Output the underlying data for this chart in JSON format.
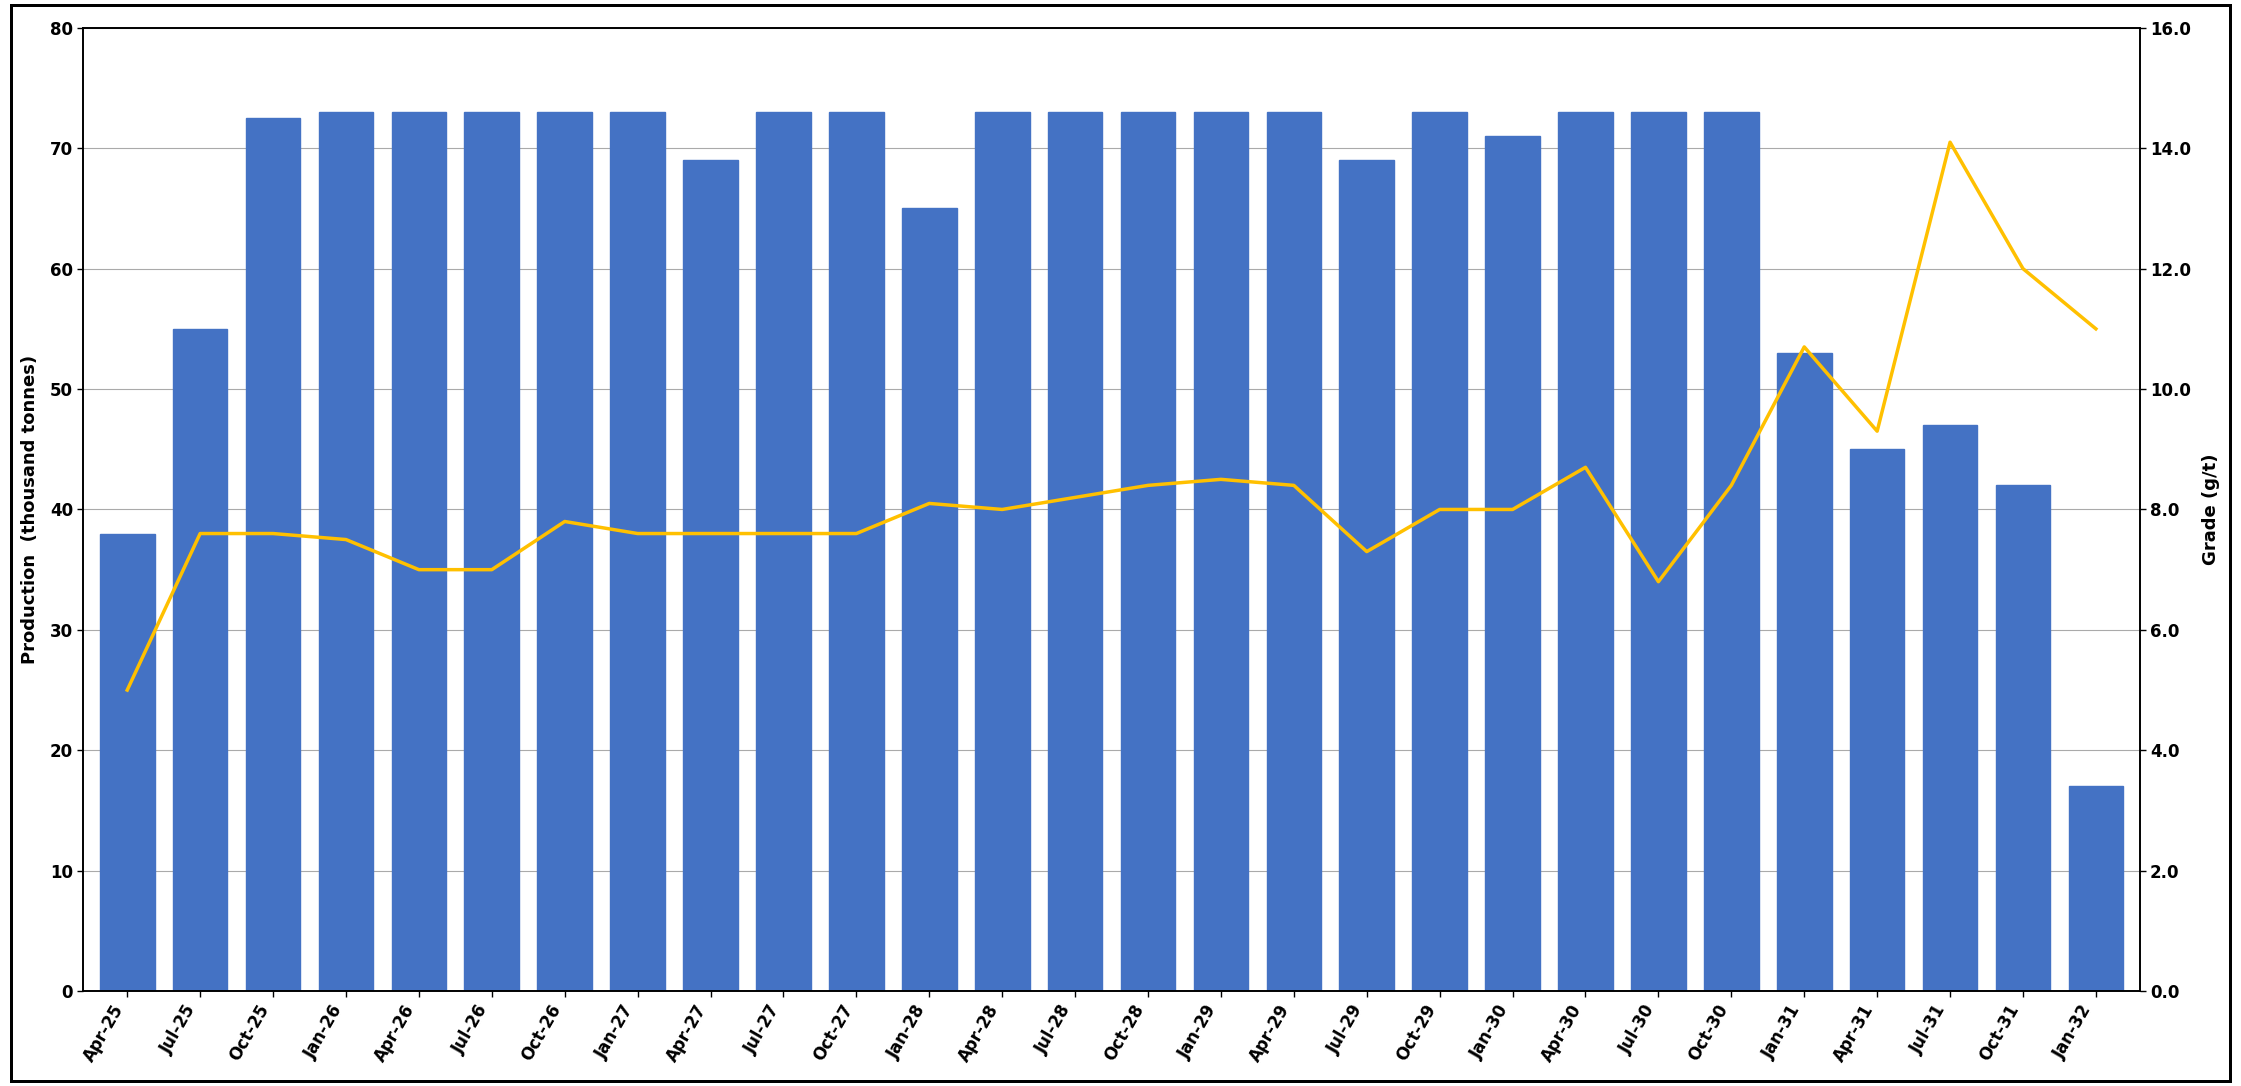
{
  "categories": [
    "Apr-25",
    "Jul-25",
    "Oct-25",
    "Jan-26",
    "Apr-26",
    "Jul-26",
    "Oct-26",
    "Jan-27",
    "Apr-27",
    "Jul-27",
    "Oct-27",
    "Jan-28",
    "Apr-28",
    "Jul-28",
    "Oct-28",
    "Jan-29",
    "Apr-29",
    "Jul-29",
    "Oct-29",
    "Jan-30",
    "Apr-30",
    "Jul-30",
    "Oct-30",
    "Jan-31",
    "Apr-31",
    "Jul-31",
    "Oct-31",
    "Jan-32"
  ],
  "production": [
    38,
    55,
    72.5,
    73,
    73,
    73,
    73,
    73,
    69,
    73,
    73,
    65,
    73,
    73,
    73,
    73,
    73,
    69,
    73,
    71,
    73,
    73,
    73,
    53,
    45,
    47,
    42,
    17
  ],
  "grade": [
    5.0,
    7.6,
    7.6,
    7.5,
    7.0,
    7.0,
    7.8,
    7.6,
    7.6,
    7.6,
    7.6,
    8.1,
    8.0,
    8.2,
    8.4,
    8.5,
    8.4,
    7.3,
    8.0,
    8.0,
    8.7,
    6.8,
    8.4,
    10.7,
    9.3,
    14.1,
    12.0,
    11.0
  ],
  "bar_color": "#4472C4",
  "line_color": "#FFC000",
  "ylabel_left": "Production  (thousand tonnes)",
  "ylabel_right": "Grade (g/t)",
  "ylim_left": [
    0,
    80
  ],
  "ylim_right": [
    0,
    16.0
  ],
  "yticks_left": [
    0,
    10,
    20,
    30,
    40,
    50,
    60,
    70,
    80
  ],
  "yticks_right": [
    0.0,
    2.0,
    4.0,
    6.0,
    8.0,
    10.0,
    12.0,
    14.0,
    16.0
  ],
  "background_color": "#FFFFFF",
  "grid_color": "#AAAAAA",
  "title_fontsize": 13,
  "axis_fontsize": 13,
  "tick_fontsize": 12,
  "bar_width": 0.75,
  "line_width": 2.5
}
